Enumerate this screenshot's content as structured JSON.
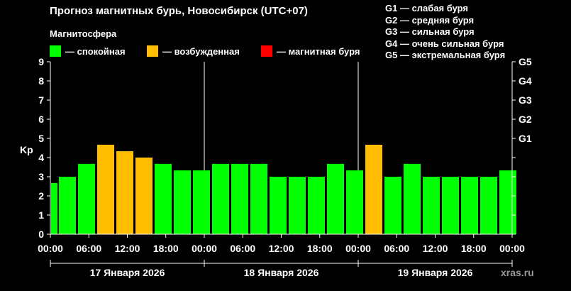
{
  "title": "Прогноз магнитных бурь, Новосибирск (UTC+07)",
  "magnetosphere_label": "Магнитосфера",
  "legend": [
    {
      "label": "— спокойная",
      "color": "#00ff00"
    },
    {
      "label": "— возбужденная",
      "color": "#ffbf00"
    },
    {
      "label": "— магнитная буря",
      "color": "#ff0000"
    }
  ],
  "storm_levels": [
    "G1 — слабая буря",
    "G2 — средняя буря",
    "G3 — сильная буря",
    "G4 — очень сильная буря",
    "G5 — экстремальная буря"
  ],
  "watermark": "xras.ru",
  "chart_data": {
    "type": "bar",
    "ylabel": "Kp",
    "ylim": [
      0,
      9
    ],
    "y_ticks": [
      "0",
      "1",
      "2",
      "3",
      "4",
      "5",
      "6",
      "7",
      "8",
      "9"
    ],
    "right_ticks": [
      {
        "label": "G1",
        "value": 5
      },
      {
        "label": "G2",
        "value": 6
      },
      {
        "label": "G3",
        "value": 7
      },
      {
        "label": "G4",
        "value": 8
      },
      {
        "label": "G5",
        "value": 9
      }
    ],
    "x_ticks": [
      "00:00",
      "06:00",
      "12:00",
      "18:00",
      "00:00",
      "06:00",
      "12:00",
      "18:00",
      "00:00",
      "06:00",
      "12:00",
      "18:00",
      "00:00"
    ],
    "days": [
      "17 Января 2026",
      "18 Января 2026",
      "19 Января 2026"
    ],
    "bars": [
      {
        "value": 2.67,
        "status": "quiet"
      },
      {
        "value": 3.0,
        "status": "quiet"
      },
      {
        "value": 3.67,
        "status": "quiet"
      },
      {
        "value": 4.67,
        "status": "active"
      },
      {
        "value": 4.33,
        "status": "active"
      },
      {
        "value": 4.0,
        "status": "active"
      },
      {
        "value": 3.67,
        "status": "quiet"
      },
      {
        "value": 3.33,
        "status": "quiet"
      },
      {
        "value": 3.33,
        "status": "quiet"
      },
      {
        "value": 3.67,
        "status": "quiet"
      },
      {
        "value": 3.67,
        "status": "quiet"
      },
      {
        "value": 3.67,
        "status": "quiet"
      },
      {
        "value": 3.0,
        "status": "quiet"
      },
      {
        "value": 3.0,
        "status": "quiet"
      },
      {
        "value": 3.0,
        "status": "quiet"
      },
      {
        "value": 3.67,
        "status": "quiet"
      },
      {
        "value": 3.33,
        "status": "quiet"
      },
      {
        "value": 4.67,
        "status": "active"
      },
      {
        "value": 3.0,
        "status": "quiet"
      },
      {
        "value": 3.67,
        "status": "quiet"
      },
      {
        "value": 3.0,
        "status": "quiet"
      },
      {
        "value": 3.0,
        "status": "quiet"
      },
      {
        "value": 3.0,
        "status": "quiet"
      },
      {
        "value": 3.0,
        "status": "quiet"
      },
      {
        "value": 3.33,
        "status": "quiet"
      }
    ],
    "colors": {
      "quiet": "#00ff00",
      "active": "#ffbf00",
      "storm": "#ff0000"
    }
  }
}
